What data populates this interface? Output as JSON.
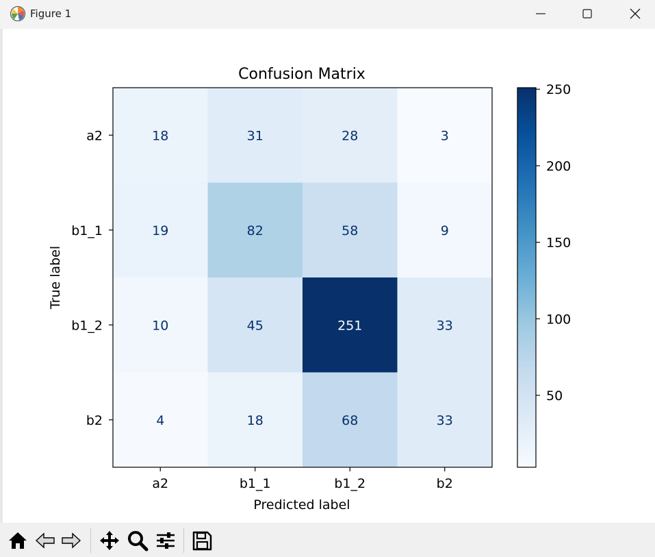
{
  "window": {
    "title": "Figure 1",
    "icon": "matplotlib-icon"
  },
  "toolbar": {
    "buttons": [
      {
        "name": "home-icon",
        "tooltip": "Home"
      },
      {
        "name": "back-arrow-icon",
        "tooltip": "Back"
      },
      {
        "name": "forward-arrow-icon",
        "tooltip": "Forward"
      },
      {
        "name": "pan-icon",
        "tooltip": "Pan"
      },
      {
        "name": "zoom-icon",
        "tooltip": "Zoom"
      },
      {
        "name": "configure-subplots-icon",
        "tooltip": "Subplots"
      },
      {
        "name": "save-icon",
        "tooltip": "Save"
      }
    ]
  },
  "chart_data": {
    "type": "heatmap",
    "title": "Confusion Matrix",
    "xlabel": "Predicted label",
    "ylabel": "True label",
    "x_categories": [
      "a2",
      "b1_1",
      "b1_2",
      "b2"
    ],
    "y_categories": [
      "a2",
      "b1_1",
      "b1_2",
      "b2"
    ],
    "values": [
      [
        18,
        31,
        28,
        3
      ],
      [
        19,
        82,
        58,
        9
      ],
      [
        10,
        45,
        251,
        33
      ],
      [
        4,
        18,
        68,
        33
      ]
    ],
    "colormap": "Blues",
    "color_range": [
      3,
      251
    ],
    "colorbar": {
      "ticks": [
        50,
        100,
        150,
        200,
        250
      ],
      "tick_labels": [
        "50",
        "100",
        "150",
        "200",
        "250"
      ]
    },
    "text_color_light": "#ffffff",
    "text_color_dark": "#08306b"
  }
}
